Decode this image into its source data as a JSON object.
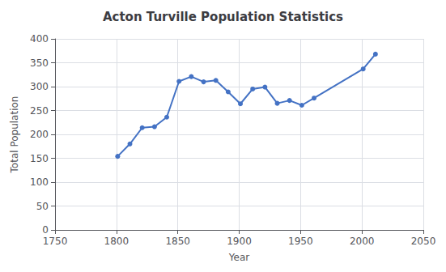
{
  "chart_data": {
    "type": "line",
    "title": "Acton Turville Population Statistics",
    "xlabel": "Year",
    "ylabel": "Total Population",
    "x": [
      1801,
      1811,
      1821,
      1831,
      1841,
      1851,
      1861,
      1871,
      1881,
      1891,
      1901,
      1911,
      1921,
      1931,
      1941,
      1951,
      1961,
      2001,
      2011
    ],
    "values": [
      154,
      180,
      214,
      216,
      236,
      311,
      321,
      310,
      313,
      289,
      264,
      295,
      299,
      265,
      271,
      261,
      276,
      337,
      368
    ],
    "color": "#4472C4",
    "marker": "circle",
    "xlim": [
      1750,
      2050
    ],
    "ylim": [
      0,
      400
    ],
    "xticks": [
      1750,
      1800,
      1850,
      1900,
      1950,
      2000,
      2050
    ],
    "yticks": [
      0,
      50,
      100,
      150,
      200,
      250,
      300,
      350,
      400
    ],
    "grid": true
  }
}
